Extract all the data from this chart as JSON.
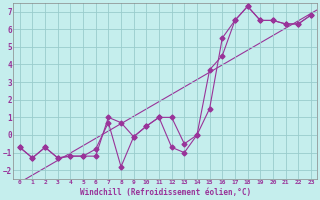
{
  "xlabel": "Windchill (Refroidissement éolien,°C)",
  "ylabel": "",
  "background_color": "#c5eeed",
  "line_color": "#993399",
  "grid_color": "#99cccc",
  "xlim": [
    -0.5,
    23.5
  ],
  "ylim": [
    -2.5,
    7.5
  ],
  "yticks": [
    -2,
    -1,
    0,
    1,
    2,
    3,
    4,
    5,
    6,
    7
  ],
  "xticks": [
    0,
    1,
    2,
    3,
    4,
    5,
    6,
    7,
    8,
    9,
    10,
    11,
    12,
    13,
    14,
    15,
    16,
    17,
    18,
    19,
    20,
    21,
    22,
    23
  ],
  "series1_x": [
    0,
    1,
    2,
    3,
    4,
    5,
    6,
    7,
    8,
    9,
    10,
    11,
    12,
    13,
    14,
    15,
    16,
    17,
    18,
    19,
    20,
    21,
    22,
    23
  ],
  "series1_y": [
    -0.7,
    -1.3,
    -0.7,
    -1.3,
    -1.2,
    -1.2,
    -1.2,
    1.0,
    0.7,
    -0.1,
    0.5,
    1.0,
    1.0,
    -0.5,
    0.0,
    3.7,
    4.5,
    6.5,
    7.3,
    6.5,
    6.5,
    6.3,
    6.3,
    6.8
  ],
  "series2_x": [
    0,
    1,
    2,
    3,
    4,
    5,
    6,
    7,
    8,
    9,
    10,
    11,
    12,
    13,
    14,
    15,
    16,
    17,
    18,
    19,
    20,
    21,
    22,
    23
  ],
  "series2_y": [
    -0.7,
    -1.3,
    -0.7,
    -1.3,
    -1.2,
    -1.2,
    -0.8,
    0.7,
    -1.8,
    -0.1,
    0.5,
    1.0,
    -0.7,
    -1.0,
    0.0,
    1.5,
    5.5,
    6.5,
    7.3,
    6.5,
    6.5,
    6.3,
    6.3,
    6.8
  ],
  "marker_size": 2.5,
  "line_width": 0.8
}
